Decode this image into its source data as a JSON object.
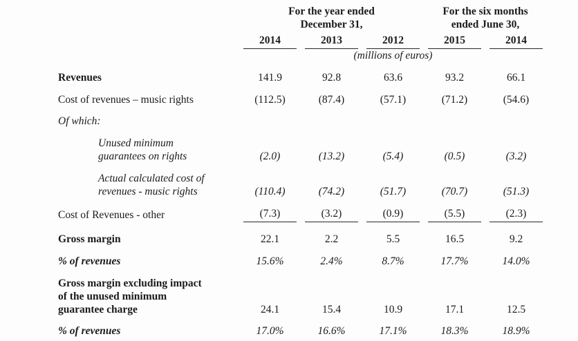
{
  "table": {
    "col_groups": [
      {
        "label": "For the year ended\nDecember 31,",
        "span": 3
      },
      {
        "label": "For the six months\nended June 30,",
        "span": 2
      }
    ],
    "year_headers": [
      "2014",
      "2013",
      "2012",
      "2015",
      "2014"
    ],
    "units_note": "(millions of euros)",
    "rows": [
      {
        "label": "Revenues",
        "values": [
          "141.9",
          "92.8",
          "63.6",
          "93.2",
          "66.1"
        ]
      },
      {
        "label": "Cost of revenues – music rights",
        "values": [
          "(112.5)",
          "(87.4)",
          "(57.1)",
          "(71.2)",
          "(54.6)"
        ]
      },
      {
        "label": "Of which:",
        "values": [
          "",
          "",
          "",
          "",
          ""
        ]
      },
      {
        "label": "Unused minimum\nguarantees on rights",
        "values": [
          "(2.0)",
          "(13.2)",
          "(5.4)",
          "(0.5)",
          "(3.2)"
        ]
      },
      {
        "label": "Actual calculated cost of\nrevenues - music rights",
        "values": [
          "(110.4)",
          "(74.2)",
          "(51.7)",
          "(70.7)",
          "(51.3)"
        ]
      },
      {
        "label": "Cost of Revenues - other",
        "values": [
          "(7.3)",
          "(3.2)",
          "(0.9)",
          "(5.5)",
          "(2.3)"
        ]
      },
      {
        "label": "Gross margin",
        "values": [
          "22.1",
          "2.2",
          "5.5",
          "16.5",
          "9.2"
        ]
      },
      {
        "label": "% of revenues",
        "values": [
          "15.6%",
          "2.4%",
          "8.7%",
          "17.7%",
          "14.0%"
        ]
      },
      {
        "label": "Gross margin excluding impact\nof the unused minimum\nguarantee charge",
        "values": [
          "24.1",
          "15.4",
          "10.9",
          "17.1",
          "12.5"
        ]
      },
      {
        "label": "% of revenues",
        "values": [
          "17.0%",
          "16.6%",
          "17.1%",
          "18.3%",
          "18.9%"
        ]
      }
    ]
  }
}
